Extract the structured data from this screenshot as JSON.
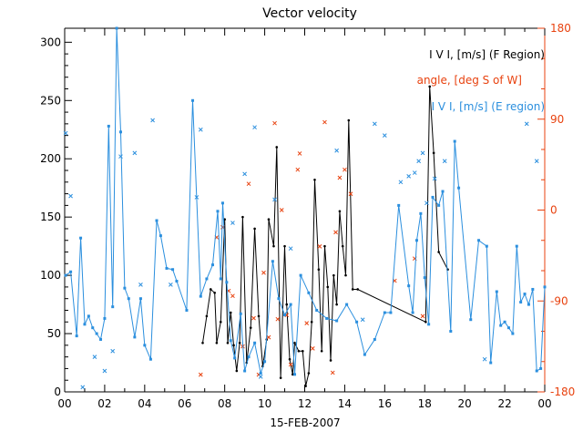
{
  "chart_data": {
    "type": "line",
    "title": "Vector velocity",
    "xlabel": "15-FEB-2007",
    "ylabel": "",
    "xlim": [
      0,
      24
    ],
    "ylim": [
      0,
      312
    ],
    "y2lim": [
      -180,
      180
    ],
    "x_tick_labels": [
      "00",
      "02",
      "04",
      "06",
      "08",
      "10",
      "12",
      "14",
      "16",
      "18",
      "20",
      "22",
      "00"
    ],
    "y_tick_labels": [
      "0",
      "50",
      "100",
      "150",
      "200",
      "250",
      "300"
    ],
    "y2_tick_labels": [
      "-180",
      "-90",
      "0",
      "90",
      "180"
    ],
    "colors": {
      "f_region": "#000000",
      "angle": "#e8420f",
      "e_region": "#2b8fde"
    },
    "legend": [
      "I V I, [m/s] (F Region)",
      "angle, [deg S of W]",
      "I V I, [m/s] (E region)"
    ],
    "series": [
      {
        "name": "I V I, [m/s] (F Region)",
        "axis": "left",
        "style": "line+dot",
        "x": [
          6.9,
          7.1,
          7.3,
          7.5,
          7.6,
          7.8,
          8.0,
          8.15,
          8.3,
          8.45,
          8.6,
          8.75,
          8.9,
          9.1,
          9.3,
          9.5,
          9.7,
          9.9,
          10.1,
          10.2,
          10.45,
          10.6,
          10.8,
          11.0,
          11.1,
          11.25,
          11.4,
          11.5,
          11.7,
          11.9,
          12.05,
          12.2,
          12.35,
          12.5,
          12.7,
          12.85,
          13.0,
          13.15,
          13.3,
          13.45,
          13.6,
          13.75,
          13.9,
          14.05,
          14.2,
          14.4,
          14.65,
          18.05,
          18.25,
          18.45,
          18.7,
          19.15
        ],
        "y": [
          42,
          65,
          88,
          85,
          42,
          60,
          148,
          42,
          68,
          40,
          18,
          42,
          150,
          25,
          55,
          140,
          65,
          22,
          45,
          148,
          125,
          210,
          12,
          125,
          75,
          28,
          15,
          42,
          35,
          35,
          5,
          16,
          60,
          182,
          105,
          35,
          125,
          90,
          27,
          100,
          75,
          155,
          125,
          100,
          233,
          88,
          88,
          60,
          262,
          205,
          120,
          105
        ]
      },
      {
        "name": "angle, [deg S of W]",
        "axis": "right",
        "style": "cross",
        "x": [
          6.8,
          7.6,
          7.9,
          8.2,
          8.4,
          8.9,
          9.2,
          9.45,
          9.7,
          9.95,
          10.2,
          10.5,
          10.65,
          10.85,
          11.1,
          11.3,
          11.65,
          11.75,
          12.1,
          12.4,
          12.75,
          13.0,
          13.4,
          13.55,
          13.75,
          14.0,
          14.3,
          16.5,
          17.5,
          17.9
        ],
        "y": [
          -163,
          -27,
          -17,
          -80,
          -85,
          -135,
          26,
          -107,
          -163,
          -62,
          -126,
          86,
          -108,
          0,
          -104,
          -153,
          40,
          56,
          -112,
          -137,
          -36,
          87,
          -161,
          -22,
          32,
          40,
          16,
          -70,
          -48,
          -105
        ]
      },
      {
        "name": "I V I, [m/s] (E region)",
        "axis": "left",
        "style": "line+square",
        "x": [
          0.05,
          0.3,
          0.6,
          0.8,
          1.0,
          1.2,
          1.4,
          1.6,
          1.8,
          2.0,
          2.2,
          2.4,
          2.6,
          2.8,
          3.0,
          3.2,
          3.5,
          3.8,
          4.0,
          4.3,
          4.6,
          4.8,
          5.1,
          5.4,
          5.6,
          6.1,
          6.4,
          6.8,
          7.1,
          7.4,
          7.65,
          7.8,
          7.9,
          8.1,
          8.3,
          8.5,
          8.8,
          9.0,
          9.2,
          9.5,
          9.8,
          10.0,
          10.4,
          10.7,
          11.0,
          11.3,
          11.5,
          11.8,
          12.2,
          12.6,
          13.1,
          13.6,
          14.1,
          14.6,
          15.0,
          15.5,
          16.0,
          16.3,
          16.7,
          17.2,
          17.4,
          17.6,
          17.8,
          18.0,
          18.2,
          18.4,
          18.7,
          18.9,
          19.3,
          19.5,
          19.7,
          20.3,
          20.7,
          21.1,
          21.3,
          21.6,
          21.8,
          22.0,
          22.2,
          22.4,
          22.6,
          22.8,
          23.0,
          23.2,
          23.4,
          23.6,
          23.8,
          24.0
        ],
        "y": [
          100,
          103,
          48,
          132,
          58,
          65,
          55,
          50,
          45,
          63,
          228,
          73,
          312,
          223,
          89,
          80,
          47,
          80,
          40,
          28,
          147,
          134,
          106,
          105,
          95,
          70,
          250,
          82,
          97,
          109,
          155,
          97,
          162,
          94,
          44,
          29,
          67,
          18,
          30,
          42,
          16,
          26,
          112,
          80,
          66,
          75,
          15,
          100,
          85,
          70,
          63,
          61,
          75,
          60,
          32,
          45,
          68,
          68,
          160,
          91,
          68,
          130,
          153,
          98,
          58,
          167,
          160,
          172,
          52,
          215,
          175,
          62,
          130,
          125,
          25,
          86,
          57,
          60,
          55,
          50,
          125,
          77,
          84,
          75,
          88,
          18,
          20,
          90
        ]
      },
      {
        "name": "E region scatter",
        "axis": "left",
        "style": "cross",
        "x": [
          0.05,
          0.3,
          0.9,
          1.5,
          2.0,
          2.4,
          2.8,
          3.5,
          3.8,
          4.4,
          5.3,
          6.6,
          6.8,
          8.4,
          9.0,
          9.5,
          9.8,
          10.5,
          11.3,
          13.6,
          14.9,
          15.5,
          16.0,
          16.8,
          17.2,
          17.5,
          17.7,
          17.9,
          18.1,
          18.5,
          19.0,
          21.0,
          23.1,
          23.6
        ],
        "y": [
          222,
          168,
          4,
          30,
          18,
          35,
          202,
          205,
          92,
          233,
          92,
          167,
          225,
          145,
          187,
          227,
          13,
          165,
          123,
          207,
          62,
          230,
          220,
          180,
          185,
          188,
          198,
          205,
          162,
          183,
          198,
          28,
          230,
          198
        ]
      }
    ]
  }
}
